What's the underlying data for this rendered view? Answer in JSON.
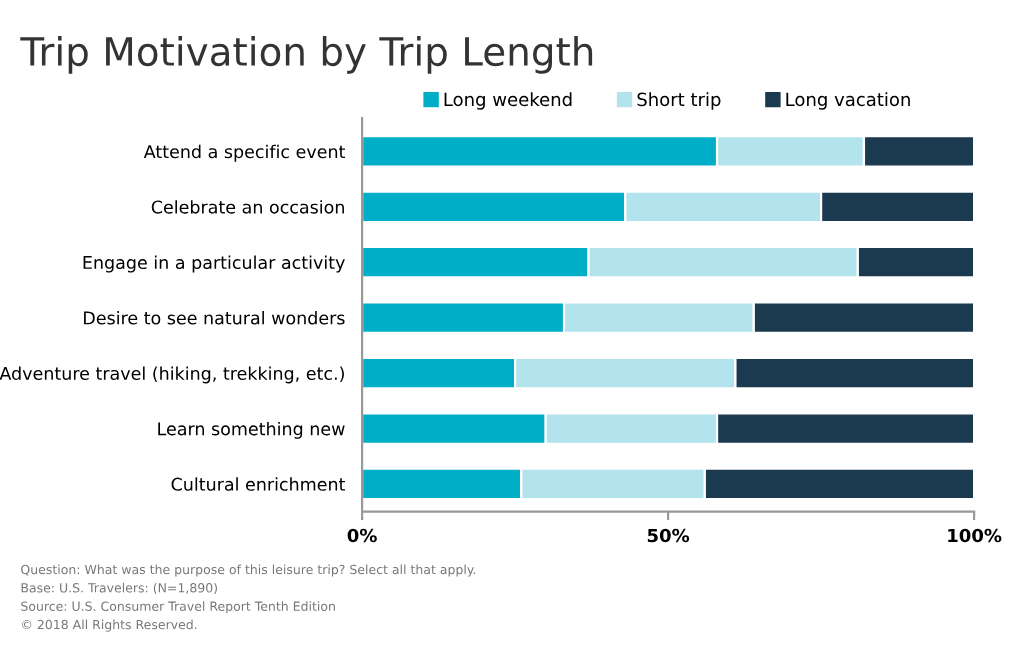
{
  "chart_data": {
    "type": "bar",
    "orientation": "horizontal",
    "stacked": true,
    "title": "Trip Motivation by Trip Length",
    "categories": [
      "Attend a specific event",
      "Celebrate an occasion",
      "Engage in a particular activity",
      "Desire to see natural wonders",
      "Adventure travel (hiking, trekking, etc.)",
      "Learn something new",
      "Cultural enrichment"
    ],
    "series": [
      {
        "name": "Long weekend",
        "color": "#00aec7",
        "values": [
          58,
          43,
          37,
          33,
          25,
          30,
          26
        ]
      },
      {
        "name": "Short trip",
        "color": "#b3e3ec",
        "values": [
          24,
          32,
          44,
          31,
          36,
          28,
          30
        ]
      },
      {
        "name": "Long vacation",
        "color": "#1b3a4f",
        "values": [
          18,
          25,
          19,
          36,
          39,
          42,
          44
        ]
      }
    ],
    "xlim": [
      0,
      100
    ],
    "xticks": [
      {
        "value": 0,
        "label": "0%"
      },
      {
        "value": 50,
        "label": "50%"
      },
      {
        "value": 100,
        "label": "100%"
      }
    ],
    "grid": false,
    "legend": "top",
    "annotations": [
      "Question: What was the purpose of this leisure trip? Select all that apply.",
      "Base: U.S. Travelers: (N=1,890)",
      "Source: U.S. Consumer Travel Report Tenth Edition",
      "© 2018 All Rights Reserved."
    ]
  }
}
